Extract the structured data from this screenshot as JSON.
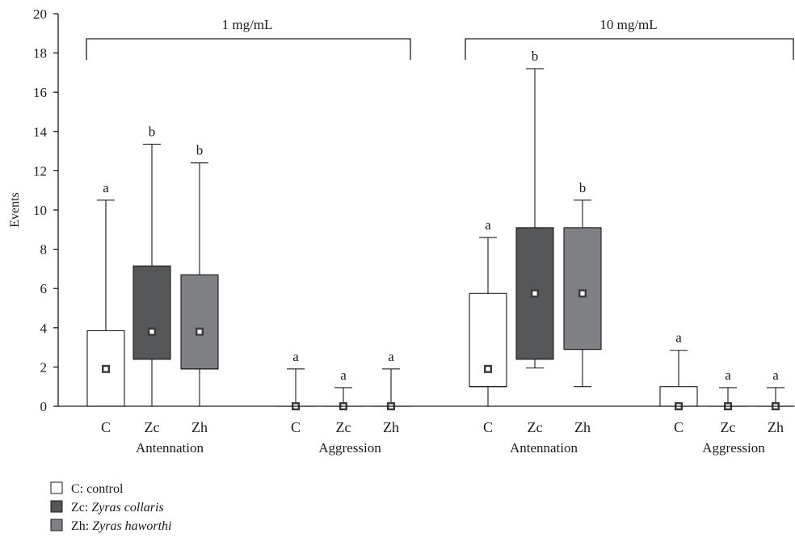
{
  "chart_data": {
    "type": "box",
    "ylabel": "Events",
    "ylim": [
      0,
      20
    ],
    "yticks": [
      0,
      2,
      4,
      6,
      8,
      10,
      12,
      14,
      16,
      18,
      20
    ],
    "grid": false,
    "legend_position": "bottom-left",
    "concentration_labels": [
      "1 mg/mL",
      "10 mg/mL"
    ],
    "legend": [
      {
        "key": "C",
        "prefix": "C: ",
        "label": "control",
        "italic": false,
        "color": "#ffffff"
      },
      {
        "key": "Zc",
        "prefix": "Zc: ",
        "label": "Zyras collaris",
        "italic": true,
        "color": "#555759"
      },
      {
        "key": "Zh",
        "prefix": "Zh: ",
        "label": "Zyras haworthi",
        "italic": true,
        "color": "#7f8083"
      }
    ],
    "groups": [
      {
        "concentration": "1 mg/mL",
        "behavior": "Antennation",
        "boxes": [
          {
            "category": "C",
            "min": 0,
            "q1": 0,
            "median": 0,
            "q3": 3.85,
            "max": 10.5,
            "mean": 1.9,
            "letter": "a"
          },
          {
            "category": "Zc",
            "min": 0,
            "q1": 2.4,
            "median": 2.4,
            "q3": 7.15,
            "max": 13.35,
            "mean": 3.8,
            "letter": "b"
          },
          {
            "category": "Zh",
            "min": 0,
            "q1": 1.9,
            "median": 1.9,
            "q3": 6.7,
            "max": 12.4,
            "mean": 3.8,
            "letter": "b"
          }
        ]
      },
      {
        "concentration": "1 mg/mL",
        "behavior": "Aggression",
        "boxes": [
          {
            "category": "C",
            "min": 0,
            "q1": 0,
            "median": 0,
            "q3": 0,
            "max": 1.9,
            "mean": 0,
            "letter": "a"
          },
          {
            "category": "Zc",
            "min": 0,
            "q1": 0,
            "median": 0,
            "q3": 0,
            "max": 0.95,
            "mean": 0,
            "letter": "a"
          },
          {
            "category": "Zh",
            "min": 0,
            "q1": 0,
            "median": 0,
            "q3": 0,
            "max": 1.9,
            "mean": 0,
            "letter": "a"
          }
        ]
      },
      {
        "concentration": "10 mg/mL",
        "behavior": "Antennation",
        "boxes": [
          {
            "category": "C",
            "min": 0,
            "q1": 1,
            "median": 1,
            "q3": 5.75,
            "max": 8.6,
            "mean": 1.9,
            "letter": "a"
          },
          {
            "category": "Zc",
            "min": 1.95,
            "q1": 2.4,
            "median": 2.4,
            "q3": 9.1,
            "max": 17.2,
            "mean": 5.75,
            "letter": "b"
          },
          {
            "category": "Zh",
            "min": 1,
            "q1": 2.9,
            "median": 2.9,
            "q3": 9.1,
            "max": 10.5,
            "mean": 5.75,
            "letter": "b"
          }
        ]
      },
      {
        "concentration": "10 mg/mL",
        "behavior": "Aggression",
        "boxes": [
          {
            "category": "C",
            "min": 0,
            "q1": 0,
            "median": 0,
            "q3": 1,
            "max": 2.85,
            "mean": 0,
            "letter": "a"
          },
          {
            "category": "Zc",
            "min": 0,
            "q1": 0,
            "median": 0,
            "q3": 0,
            "max": 0.95,
            "mean": 0,
            "letter": "a"
          },
          {
            "category": "Zh",
            "min": 0,
            "q1": 0,
            "median": 0,
            "q3": 0,
            "max": 0.95,
            "mean": 0,
            "letter": "a"
          }
        ]
      }
    ]
  }
}
